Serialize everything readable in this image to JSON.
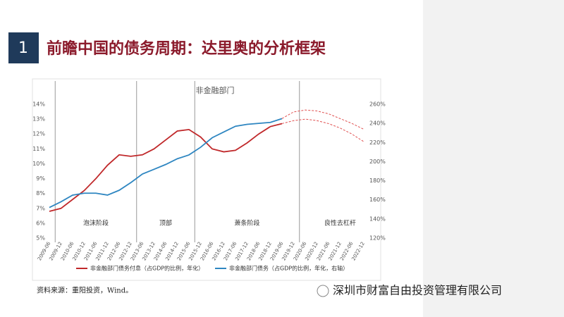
{
  "slide_number": "1",
  "title": "前瞻中国的债务周期：达里奥的分析框架",
  "source": "资料来源：重阳投资，Wind。",
  "watermark": "深圳市财富自由投资管理有限公司",
  "chart_data": {
    "type": "line",
    "title": "非金融部门",
    "categories": [
      "2009-06",
      "2009-12",
      "2010-06",
      "2010-12",
      "2011-06",
      "2011-12",
      "2012-06",
      "2012-12",
      "2013-06",
      "2013-12",
      "2014-06",
      "2014-12",
      "2015-06",
      "2015-12",
      "2016-06",
      "2016-12",
      "2017-06",
      "2017-12",
      "2018-06",
      "2018-12",
      "2019-06",
      "2019-12",
      "2020-06",
      "2020-12",
      "2021-06",
      "2021-12",
      "2022-06",
      "2022-12"
    ],
    "series": [
      {
        "name": "非金融部门债务付息（占GDP的比例，年化）",
        "color": "#c0282a",
        "axis": "y",
        "values": [
          6.8,
          7.0,
          7.6,
          8.2,
          9.0,
          9.9,
          10.6,
          10.5,
          10.6,
          11.0,
          11.6,
          12.2,
          12.3,
          11.8,
          11.0,
          10.8,
          10.9,
          11.4,
          12.0,
          12.5,
          12.7,
          null,
          null,
          null,
          null,
          null,
          null,
          null
        ]
      },
      {
        "name": "非金融部门债务（占GDP的比例，年化，右轴）",
        "color": "#2e86c1",
        "axis": "y2",
        "values": [
          152,
          158,
          165,
          167,
          167,
          165,
          170,
          178,
          187,
          192,
          197,
          203,
          207,
          215,
          225,
          231,
          237,
          239,
          240,
          241,
          245,
          null,
          null,
          null,
          null,
          null,
          null,
          null
        ]
      },
      {
        "color": "#e05050",
        "axis": "y2",
        "dashed": true,
        "values": [
          null,
          null,
          null,
          null,
          null,
          null,
          null,
          null,
          null,
          null,
          null,
          null,
          null,
          null,
          null,
          null,
          null,
          null,
          null,
          null,
          245,
          252,
          254,
          253,
          250,
          245,
          240,
          234
        ]
      },
      {
        "color": "#e05050",
        "axis": "y",
        "dashed": true,
        "values": [
          null,
          null,
          null,
          null,
          null,
          null,
          null,
          null,
          null,
          null,
          null,
          null,
          null,
          null,
          null,
          null,
          null,
          null,
          null,
          null,
          12.7,
          12.9,
          13.0,
          12.9,
          12.7,
          12.4,
          12.0,
          11.5
        ]
      }
    ],
    "ylim": [
      5,
      14
    ],
    "yticks": [
      {
        "value": 5,
        "label": "5%"
      },
      {
        "value": 6,
        "label": "6%"
      },
      {
        "value": 7,
        "label": "7%"
      },
      {
        "value": 8,
        "label": "8%"
      },
      {
        "value": 9,
        "label": "9%"
      },
      {
        "value": 10,
        "label": "10%"
      },
      {
        "value": 11,
        "label": "11%"
      },
      {
        "value": 12,
        "label": "12%"
      },
      {
        "value": 13,
        "label": "13%"
      },
      {
        "value": 14,
        "label": "14%"
      }
    ],
    "y2lim": [
      120,
      260
    ],
    "y2ticks": [
      {
        "value": 120,
        "label": "120%"
      },
      {
        "value": 140,
        "label": "140%"
      },
      {
        "value": 160,
        "label": "160%"
      },
      {
        "value": 180,
        "label": "180%"
      },
      {
        "value": 200,
        "label": "200%"
      },
      {
        "value": 220,
        "label": "220%"
      },
      {
        "value": 240,
        "label": "240%"
      },
      {
        "value": 260,
        "label": "260%"
      }
    ],
    "dividers": [
      "2009-12",
      "2013-06",
      "2015-12",
      "2020-06"
    ],
    "phases": [
      "泡沫阶段",
      "顶部",
      "萧条阶段",
      "良性去杠杆"
    ]
  }
}
